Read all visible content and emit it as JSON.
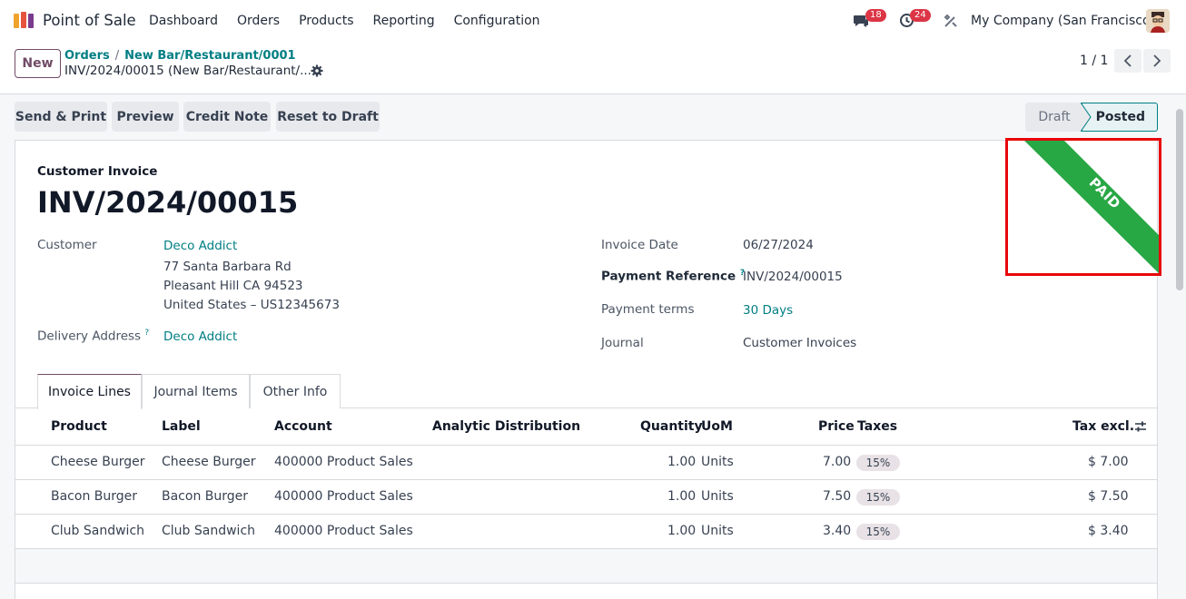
{
  "navbar": {
    "app_name": "Point of Sale",
    "menu": [
      "Dashboard",
      "Orders",
      "Products",
      "Reporting",
      "Configuration"
    ],
    "messages_badge": "18",
    "activities_badge": "24",
    "company": "My Company (San Francisco)"
  },
  "control_panel": {
    "new_label": "New",
    "breadcrumb": [
      "Orders",
      "New Bar/Restaurant/0001"
    ],
    "current": "INV/2024/00015 (New Bar/Restaurant/...",
    "pager": "1 / 1"
  },
  "actions": {
    "send_print": "Send & Print",
    "preview": "Preview",
    "credit_note": "Credit Note",
    "reset_draft": "Reset to Draft"
  },
  "status": {
    "draft": "Draft",
    "posted": "Posted"
  },
  "invoice": {
    "type": "Customer Invoice",
    "number": "INV/2024/00015",
    "ribbon": "PAID",
    "customer_label": "Customer",
    "customer_name": "Deco Addict",
    "address": [
      "77 Santa Barbara Rd",
      "Pleasant Hill CA 94523",
      "United States – US12345673"
    ],
    "delivery_label": "Delivery Address",
    "delivery_value": "Deco Addict",
    "invoice_date_label": "Invoice Date",
    "invoice_date": "06/27/2024",
    "payment_ref_label": "Payment Reference",
    "payment_ref": "INV/2024/00015",
    "payment_terms_label": "Payment terms",
    "payment_terms": "30 Days",
    "journal_label": "Journal",
    "journal": "Customer Invoices",
    "help_mark": "?"
  },
  "tabs": [
    "Invoice Lines",
    "Journal Items",
    "Other Info"
  ],
  "table": {
    "headers": {
      "product": "Product",
      "label": "Label",
      "account": "Account",
      "analytic": "Analytic Distribution",
      "quantity": "Quantity",
      "uom": "UoM",
      "price": "Price",
      "taxes": "Taxes",
      "tax_excl": "Tax excl."
    },
    "rows": [
      {
        "product": "Cheese Burger",
        "label": "Cheese Burger",
        "account": "400000 Product Sales",
        "quantity": "1.00",
        "uom": "Units",
        "price": "7.00",
        "tax": "15%",
        "subtotal": "$ 7.00"
      },
      {
        "product": "Bacon Burger",
        "label": "Bacon Burger",
        "account": "400000 Product Sales",
        "quantity": "1.00",
        "uom": "Units",
        "price": "7.50",
        "tax": "15%",
        "subtotal": "$ 7.50"
      },
      {
        "product": "Club Sandwich",
        "label": "Club Sandwich",
        "account": "400000 Product Sales",
        "quantity": "1.00",
        "uom": "Units",
        "price": "3.40",
        "tax": "15%",
        "subtotal": "$ 3.40"
      }
    ]
  },
  "colors": {
    "brand": "#714b67",
    "link": "#017e84",
    "paid_ribbon": "#28a745",
    "highlight_box": "#e8050a"
  }
}
